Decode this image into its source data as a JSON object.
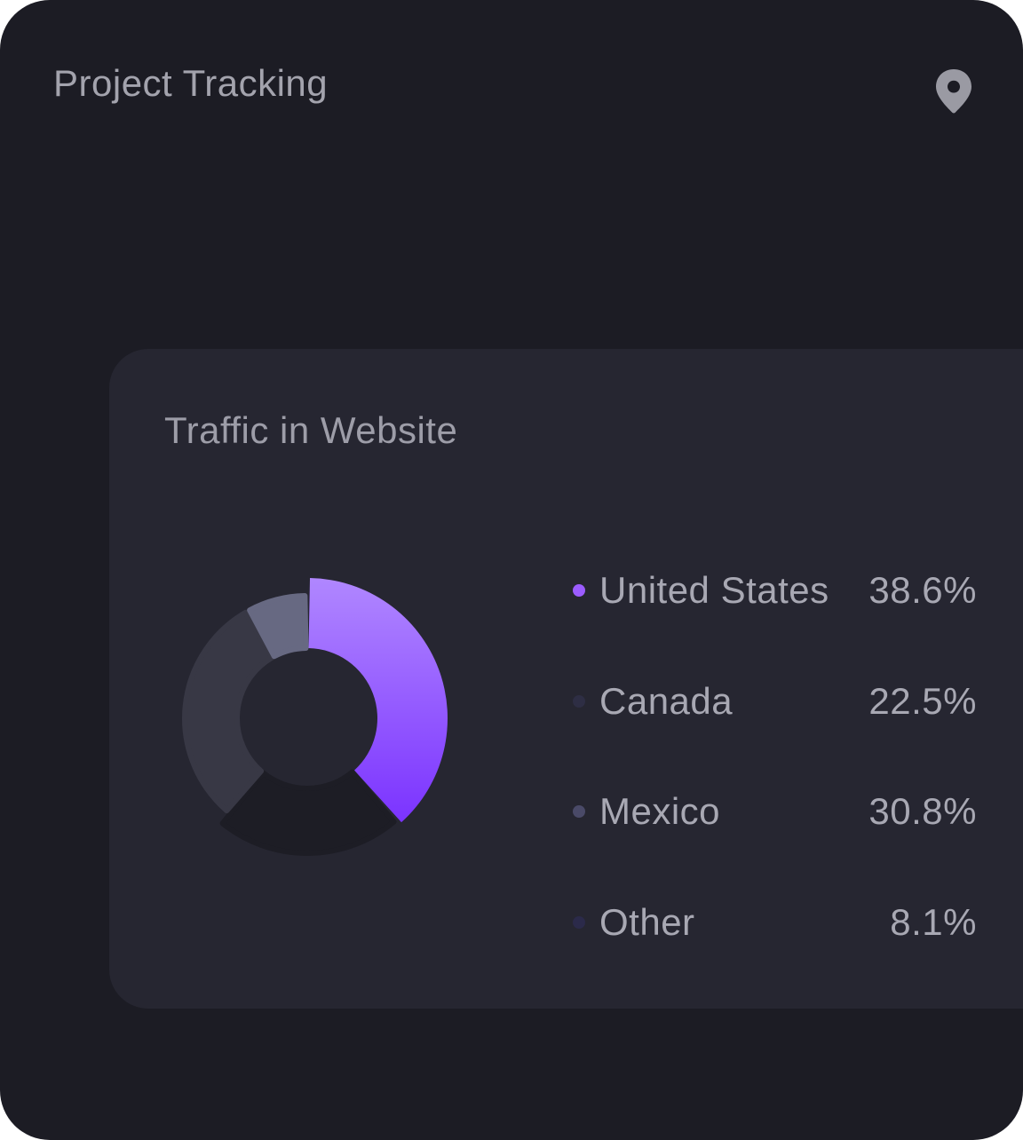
{
  "header": {
    "title": "Project Tracking",
    "icon": "location-pin-icon"
  },
  "panel": {
    "title": "Traffic in Website"
  },
  "chart_data": {
    "type": "pie",
    "style": "donut",
    "slices": [
      {
        "label": "United States",
        "value": 38.6,
        "display": "38.6%",
        "color": "#9b5cff",
        "dot_color": "#9b5cff"
      },
      {
        "label": "Canada",
        "value": 22.5,
        "display": "22.5%",
        "color": "#1d1d25",
        "dot_color": "#2e2e44"
      },
      {
        "label": "Mexico",
        "value": 30.8,
        "display": "30.8%",
        "color": "#383845",
        "dot_color": "#4a4a68"
      },
      {
        "label": "Other",
        "value": 8.1,
        "display": "8.1%",
        "color": "#676982",
        "dot_color": "#2b2a4a"
      }
    ],
    "legend_position": "right"
  },
  "colors": {
    "background": "#1c1c24",
    "panel": "#262631",
    "accent_gradient_top": "#b087ff",
    "accent_gradient_bottom": "#7b33ff"
  }
}
